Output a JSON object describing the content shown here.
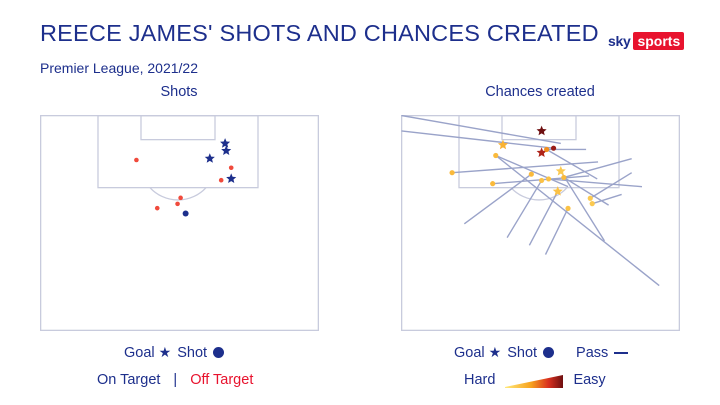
{
  "header": {
    "title": "REECE JAMES' SHOTS AND CHANCES CREATED",
    "subtitle": "Premier League, 2021/22",
    "logo_sky": "sky",
    "logo_sports": "sports"
  },
  "colors": {
    "navy": "#1d2f8c",
    "off_target": "#f04a3c",
    "pitch_line": "#c8cbdd",
    "pass_line": "#9aa3c9"
  },
  "chart_data": [
    {
      "type": "scatter",
      "title": "Shots",
      "pitch_extent": {
        "x": [
          0,
          100
        ],
        "y": [
          0,
          100
        ]
      },
      "series": [
        {
          "name": "Goal",
          "marker": "star",
          "points": [
            {
              "x": 66.4,
              "y": 13.0,
              "target": "on"
            },
            {
              "x": 66.8,
              "y": 16.4,
              "target": "on"
            },
            {
              "x": 60.9,
              "y": 20.0,
              "target": "on"
            },
            {
              "x": 68.6,
              "y": 29.4,
              "target": "on"
            }
          ]
        },
        {
          "name": "Shot",
          "marker": "circle",
          "points": [
            {
              "x": 34.5,
              "y": 20.7,
              "target": "off"
            },
            {
              "x": 68.6,
              "y": 24.3,
              "target": "off"
            },
            {
              "x": 65.0,
              "y": 30.1,
              "target": "off"
            },
            {
              "x": 50.4,
              "y": 38.3,
              "target": "off"
            },
            {
              "x": 49.3,
              "y": 41.1,
              "target": "off"
            },
            {
              "x": 42.0,
              "y": 43.1,
              "target": "off"
            },
            {
              "x": 52.2,
              "y": 45.6,
              "target": "on"
            }
          ]
        }
      ]
    },
    {
      "type": "scatter",
      "title": "Chances created",
      "pitch_extent": {
        "x": [
          0,
          100
        ],
        "y": [
          0,
          100
        ]
      },
      "series": [
        {
          "name": "Goal",
          "marker": "star",
          "points": [
            {
              "x": 50.4,
              "y": 7.2,
              "difficulty": 1.0
            },
            {
              "x": 50.4,
              "y": 17.3,
              "difficulty": 0.85
            },
            {
              "x": 36.5,
              "y": 13.7,
              "difficulty": 0.35
            },
            {
              "x": 57.3,
              "y": 25.9,
              "difficulty": 0.2
            },
            {
              "x": 56.2,
              "y": 35.3,
              "difficulty": 0.25
            }
          ]
        },
        {
          "name": "Shot",
          "marker": "circle",
          "points": [
            {
              "x": 54.7,
              "y": 15.2,
              "difficulty": 0.9
            },
            {
              "x": 52.2,
              "y": 15.8,
              "difficulty": 0.5
            },
            {
              "x": 33.9,
              "y": 18.6,
              "difficulty": 0.3
            },
            {
              "x": 18.2,
              "y": 26.6,
              "difficulty": 0.3
            },
            {
              "x": 46.7,
              "y": 27.3,
              "difficulty": 0.3
            },
            {
              "x": 52.9,
              "y": 29.5,
              "difficulty": 0.25
            },
            {
              "x": 50.4,
              "y": 30.2,
              "difficulty": 0.25
            },
            {
              "x": 32.8,
              "y": 31.7,
              "difficulty": 0.3
            },
            {
              "x": 58.4,
              "y": 28.8,
              "difficulty": 0.3
            },
            {
              "x": 67.9,
              "y": 38.5,
              "difficulty": 0.2
            },
            {
              "x": 68.6,
              "y": 41.0,
              "difficulty": 0.2
            },
            {
              "x": 59.9,
              "y": 43.2,
              "difficulty": 0.25
            }
          ]
        },
        {
          "name": "Pass",
          "marker": "line",
          "lines": [
            [
              0.0,
              0.0,
              57.3,
              13.0
            ],
            [
              0.0,
              7.2,
              54.7,
              15.2
            ],
            [
              52.2,
              15.8,
              66.4,
              15.8
            ],
            [
              18.2,
              26.6,
              70.7,
              21.6
            ],
            [
              33.9,
              18.6,
              59.9,
              33.1
            ],
            [
              32.8,
              31.7,
              67.5,
              28.1
            ],
            [
              52.9,
              29.5,
              86.5,
              33.1
            ],
            [
              58.4,
              28.8,
              82.8,
              20.1
            ],
            [
              46.7,
              27.3,
              22.6,
              50.4
            ],
            [
              50.4,
              30.2,
              38.0,
              56.8
            ],
            [
              56.2,
              35.3,
              46.0,
              60.4
            ],
            [
              59.9,
              43.2,
              51.8,
              64.7
            ],
            [
              67.9,
              38.5,
              82.8,
              26.6
            ],
            [
              68.6,
              41.0,
              79.2,
              36.7
            ],
            [
              57.3,
              25.9,
              73.0,
              58.3
            ],
            [
              33.9,
              18.6,
              92.7,
              79.1
            ],
            [
              58.4,
              28.8,
              74.5,
              41.7
            ],
            [
              52.2,
              15.8,
              70.4,
              29.5
            ]
          ]
        }
      ]
    }
  ],
  "legend_shots": {
    "goal": "Goal",
    "goal_symbol": "★",
    "shot": "Shot",
    "on_target": "On Target",
    "separator": "|",
    "off_target": "Off Target"
  },
  "legend_chances": {
    "goal": "Goal",
    "goal_symbol": "★",
    "shot": "Shot",
    "pass": "Pass",
    "hard": "Hard",
    "easy": "Easy"
  }
}
